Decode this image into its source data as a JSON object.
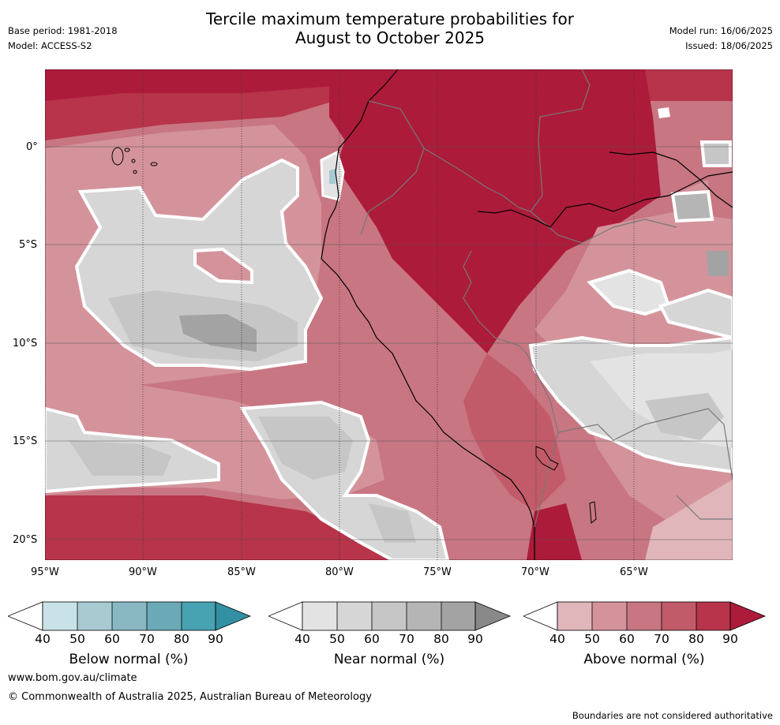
{
  "header": {
    "title_line1": "Tercile maximum temperature probabilities for",
    "title_line2": "August to October 2025",
    "base_period": "Base period: 1981-2018",
    "model": "Model: ACCESS-S2",
    "model_run": "Model run: 16/06/2025",
    "issued": "Issued: 18/06/2025"
  },
  "map": {
    "lat_ticks": [
      "0°",
      "5°S",
      "10°S",
      "15°S",
      "20°S"
    ],
    "lon_ticks": [
      "95°W",
      "90°W",
      "85°W",
      "80°W",
      "75°W",
      "70°W",
      "65°W"
    ]
  },
  "legend": {
    "below": {
      "label": "Below normal (%)",
      "ticks": [
        "40",
        "50",
        "60",
        "70",
        "80",
        "90"
      ],
      "colors": [
        "#ffffff",
        "#c9e2e7",
        "#a8cbd2",
        "#89b8c3",
        "#6aaab6",
        "#47a2b1",
        "#3290a2"
      ]
    },
    "near": {
      "label": "Near normal (%)",
      "ticks": [
        "40",
        "50",
        "60",
        "70",
        "80",
        "90"
      ],
      "colors": [
        "#ffffff",
        "#e3e3e3",
        "#d6d6d6",
        "#c6c6c6",
        "#b5b5b5",
        "#a3a3a3",
        "#898989"
      ]
    },
    "above": {
      "label": "Above normal (%)",
      "ticks": [
        "40",
        "50",
        "60",
        "70",
        "80",
        "90"
      ],
      "colors": [
        "#ffffff",
        "#e0b6bb",
        "#d4939b",
        "#c87682",
        "#c25b69",
        "#b7344a",
        "#ad1b3a"
      ]
    }
  },
  "footer": {
    "website": "www.bom.gov.au/climate",
    "copyright": "© Commonwealth of Australia 2025, Australian Bureau of Meteorology",
    "disclaimer": "Boundaries are not considered authoritative"
  }
}
